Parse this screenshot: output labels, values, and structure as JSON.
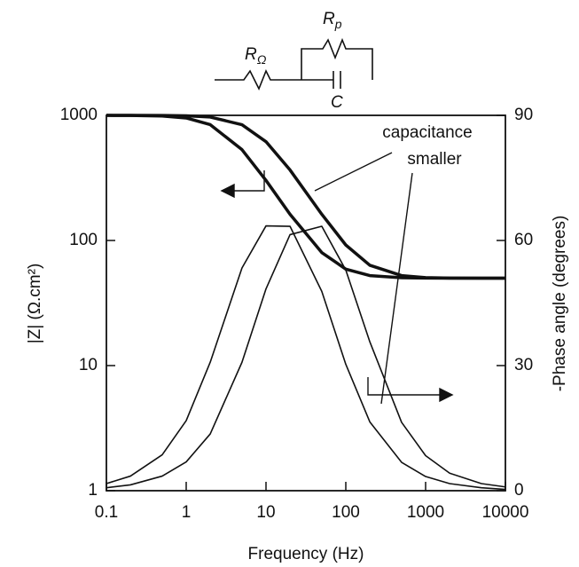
{
  "chart_data": {
    "type": "line",
    "x_label": "Frequency (Hz)",
    "y_label": "|Z| (Ω.cm²)",
    "y2_label": "-Phase angle (degrees)",
    "annotation": [
      "capacitance",
      "smaller"
    ],
    "circuit_labels": {
      "r_ohm": {
        "main": "R",
        "sub": "Ω"
      },
      "r_p": {
        "main": "R",
        "sub": "p"
      },
      "c": "C"
    },
    "x": [
      0.1,
      0.2,
      0.5,
      1,
      2,
      5,
      10,
      20,
      50,
      100,
      200,
      500,
      1000,
      2000,
      5000,
      10000
    ],
    "series": [
      {
        "color": "#111111",
        "line_width": 3.5,
        "axis": "y",
        "values": [
          999,
          998,
          988,
          953,
          843,
          532,
          302,
          162,
          80,
          59,
          52.4,
          50.4,
          50.1,
          50,
          50,
          50
        ]
      },
      {
        "color": "#111111",
        "line_width": 3.5,
        "axis": "y",
        "values": [
          1000,
          1000,
          998,
          992,
          969,
          842,
          616,
          366,
          162,
          92,
          63.4,
          52.4,
          50.5,
          50.1,
          50,
          50
        ]
      },
      {
        "color": "#111111",
        "line_width": 1.6,
        "axis": "y2",
        "values": [
          1.7,
          3.5,
          8.6,
          16.8,
          30.8,
          53.4,
          63.5,
          63.4,
          47.8,
          30.3,
          16.5,
          6.8,
          3.4,
          1.7,
          0.7,
          0.3
        ]
      },
      {
        "color": "#111111",
        "line_width": 1.6,
        "axis": "y2",
        "values": [
          0.7,
          1.4,
          3.5,
          6.9,
          13.6,
          30.8,
          48.4,
          61.4,
          63.4,
          52.9,
          35.7,
          16.4,
          8.4,
          4.2,
          1.7,
          0.9
        ]
      }
    ],
    "xlim": [
      0.1,
      10000
    ],
    "xticks": [
      0.1,
      1,
      10,
      100,
      1000,
      10000
    ],
    "x_log": true,
    "ylim": [
      1,
      1000
    ],
    "yticks": [
      1,
      10,
      100,
      1000
    ],
    "y_log": true,
    "y2lim": [
      0,
      90
    ],
    "y2ticks": [
      0,
      30,
      60,
      90
    ],
    "grid": false
  }
}
